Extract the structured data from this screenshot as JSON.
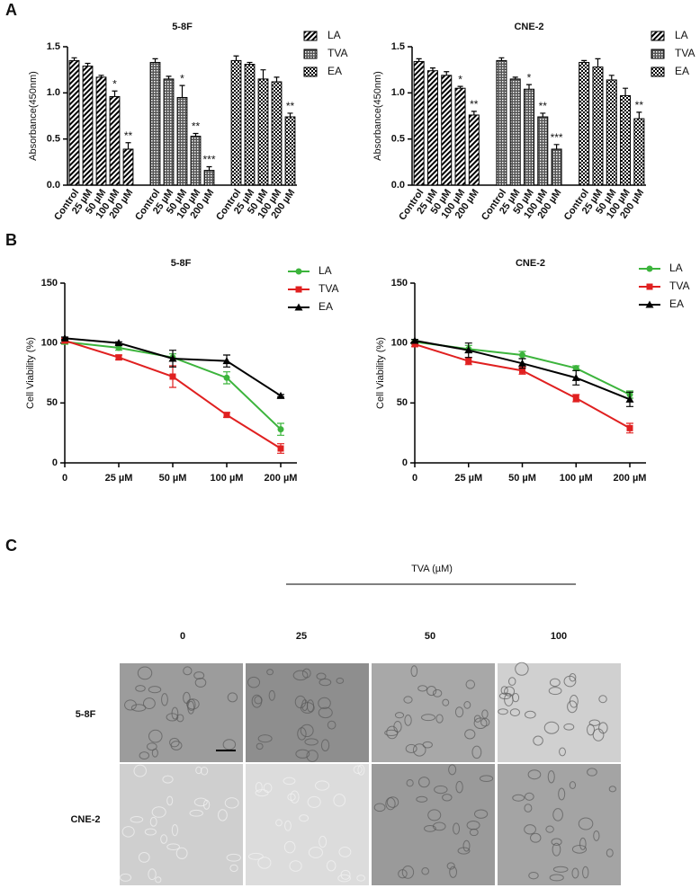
{
  "panel_labels": [
    "A",
    "B",
    "C"
  ],
  "chart_data": [
    {
      "type": "bar",
      "title": "5-8F",
      "ylabel": "Absorbance(450nm)",
      "categories": [
        "Control",
        "25 µM",
        "50 µM",
        "100 µM",
        "200 µM"
      ],
      "ylim": [
        0,
        1.5
      ],
      "yticks": [
        {
          "value": 0,
          "label": "0.0"
        },
        0.5,
        {
          "value": 1,
          "label": "1.0"
        },
        1.5
      ],
      "series": [
        {
          "name": "LA",
          "color": "#000000",
          "pattern": "diagonal",
          "values": [
            1.35,
            1.29,
            1.17,
            0.96,
            0.39
          ],
          "errors": [
            0.03,
            0.03,
            0.02,
            0.06,
            0.07
          ],
          "annotations": [
            null,
            null,
            null,
            "*",
            "**"
          ]
        },
        {
          "name": "TVA",
          "color": "#000000",
          "pattern": "crosshatch",
          "values": [
            1.33,
            1.15,
            0.95,
            0.53,
            0.16
          ],
          "errors": [
            0.04,
            0.03,
            0.13,
            0.03,
            0.04
          ],
          "annotations": [
            null,
            null,
            "*",
            "**",
            "***"
          ]
        },
        {
          "name": "EA",
          "color": "#000000",
          "pattern": "checker",
          "values": [
            1.35,
            1.31,
            1.15,
            1.12,
            0.74
          ],
          "errors": [
            0.05,
            0.02,
            0.1,
            0.05,
            0.04
          ],
          "annotations": [
            null,
            null,
            null,
            null,
            "**"
          ]
        }
      ]
    },
    {
      "type": "bar",
      "title": "CNE-2",
      "ylabel": "Absorbance(450nm)",
      "categories": [
        "Control",
        "25 µM",
        "50 µM",
        "100 µM",
        "200 µM"
      ],
      "ylim": [
        0,
        1.5
      ],
      "yticks": [
        {
          "value": 0,
          "label": "0.0"
        },
        0.5,
        {
          "value": 1,
          "label": "1.0"
        },
        1.5
      ],
      "series": [
        {
          "name": "LA",
          "color": "#000000",
          "pattern": "diagonal",
          "values": [
            1.34,
            1.24,
            1.19,
            1.05,
            0.76
          ],
          "errors": [
            0.03,
            0.03,
            0.04,
            0.02,
            0.04
          ],
          "annotations": [
            null,
            null,
            null,
            "*",
            "**"
          ]
        },
        {
          "name": "TVA",
          "color": "#000000",
          "pattern": "crosshatch",
          "values": [
            1.35,
            1.15,
            1.04,
            0.74,
            0.39
          ],
          "errors": [
            0.03,
            0.02,
            0.05,
            0.04,
            0.05
          ],
          "annotations": [
            null,
            null,
            "*",
            "**",
            "***"
          ]
        },
        {
          "name": "EA",
          "color": "#000000",
          "pattern": "checker",
          "values": [
            1.33,
            1.28,
            1.14,
            0.97,
            0.72
          ],
          "errors": [
            0.02,
            0.09,
            0.05,
            0.08,
            0.07
          ],
          "annotations": [
            null,
            null,
            null,
            null,
            "**"
          ]
        }
      ]
    },
    {
      "type": "line",
      "title": "5-8F",
      "ylabel": "Cell Viability (%)",
      "categories": [
        "0",
        "25 µM",
        "50 µM",
        "100 µM",
        "200 µM"
      ],
      "ylim": [
        0,
        150
      ],
      "yticks": [
        0,
        50,
        100,
        150
      ],
      "series": [
        {
          "name": "LA",
          "color": "#3cb43c",
          "marker": "circle",
          "values": [
            101,
            96,
            88,
            71,
            28
          ],
          "errors": [
            2,
            2,
            3,
            5,
            5
          ]
        },
        {
          "name": "TVA",
          "color": "#e02020",
          "marker": "square",
          "values": [
            102,
            88,
            72,
            40,
            12
          ],
          "errors": [
            2,
            2,
            9,
            2,
            4
          ]
        },
        {
          "name": "EA",
          "color": "#000000",
          "marker": "triangle",
          "values": [
            104,
            100,
            87,
            85,
            56
          ],
          "errors": [
            1,
            1,
            7,
            5,
            1
          ]
        }
      ]
    },
    {
      "type": "line",
      "title": "CNE-2",
      "ylabel": "Cell Viability (%)",
      "categories": [
        "0",
        "25 µM",
        "50 µM",
        "100 µM",
        "200 µM"
      ],
      "ylim": [
        0,
        150
      ],
      "yticks": [
        0,
        50,
        100,
        150
      ],
      "series": [
        {
          "name": "LA",
          "color": "#3cb43c",
          "marker": "circle",
          "values": [
            101,
            95,
            90,
            79,
            57
          ],
          "errors": [
            2,
            3,
            3,
            2,
            3
          ]
        },
        {
          "name": "TVA",
          "color": "#e02020",
          "marker": "square",
          "values": [
            99,
            85,
            77,
            54,
            29
          ],
          "errors": [
            2,
            3,
            3,
            3,
            4
          ]
        },
        {
          "name": "EA",
          "color": "#000000",
          "marker": "triangle",
          "values": [
            102,
            94,
            83,
            71,
            53
          ],
          "errors": [
            1,
            6,
            4,
            6,
            6
          ]
        }
      ]
    }
  ],
  "panel_c": {
    "treatment": "TVA (µM)",
    "columns": [
      "0",
      "25",
      "50",
      "100"
    ],
    "rows": [
      "5-8F",
      "CNE-2"
    ]
  }
}
